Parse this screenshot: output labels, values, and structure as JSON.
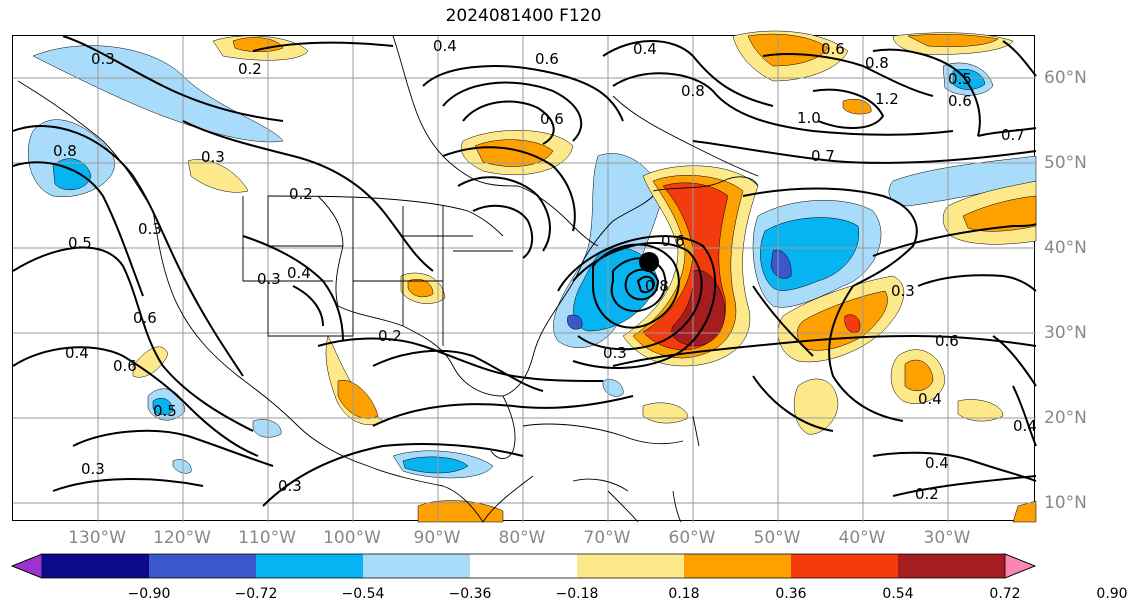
{
  "title": "2024081400 F120",
  "map": {
    "lon_labels": [
      "130°W",
      "120°W",
      "110°W",
      "100°W",
      "90°W",
      "80°W",
      "70°W",
      "60°W",
      "50°W",
      "40°W",
      "30°W"
    ],
    "lat_labels": [
      "60°N",
      "50°N",
      "40°N",
      "30°N",
      "20°N",
      "10°N"
    ],
    "contour_labels": [
      "0.3",
      "0.2",
      "0.4",
      "0.6",
      "0.4",
      "0.6",
      "0.8",
      "0.6",
      "0.8",
      "1.0",
      "1.2",
      "0.7",
      "0.7",
      "0.5",
      "0.6",
      "0.8",
      "0.3",
      "0.2",
      "0.5",
      "0.3",
      "0.4",
      "0.3",
      "0.2",
      "0.6",
      "0.4",
      "0.6",
      "0.5",
      "0.3",
      "0.3",
      "0.8",
      "0.6",
      "0.3",
      "0.3",
      "0.6",
      "0.4",
      "0.4",
      "0.4",
      "0.2"
    ]
  },
  "colorbar": {
    "labels": [
      "−0.90",
      "−0.72",
      "−0.54",
      "−0.36",
      "−0.18",
      "0.18",
      "0.36",
      "0.54",
      "0.72",
      "0.90"
    ],
    "colors": [
      "#9a34d0",
      "#0a0a8a",
      "#3a58cc",
      "#06b4f2",
      "#a9dcfb",
      "#ffffff",
      "#fde98a",
      "#fda000",
      "#f33b0e",
      "#a61d20",
      "#fa86b2"
    ]
  },
  "fills": {
    "light_blue": "#a9dcfb",
    "blue": "#06b4f2",
    "mid_blue": "#3a58cc",
    "yellow": "#fde98a",
    "orange": "#fda000",
    "red_orange": "#f33b0e",
    "dark_red": "#a61d20"
  }
}
